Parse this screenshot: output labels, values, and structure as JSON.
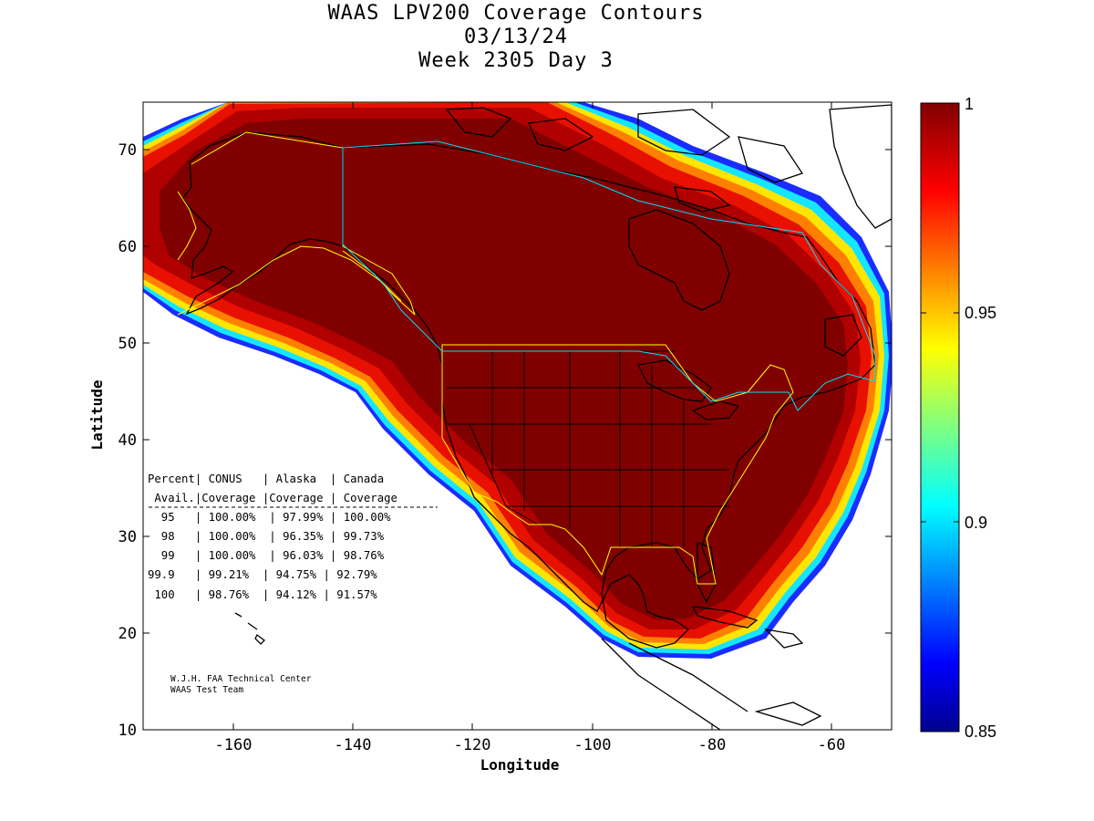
{
  "title": {
    "line1": "WAAS LPV200 Coverage Contours",
    "line2": "03/13/24",
    "line3": "Week 2305 Day 3"
  },
  "axes": {
    "xlabel": "Longitude",
    "ylabel": "Latitude",
    "xlim": [
      -175,
      -50
    ],
    "ylim": [
      10,
      75
    ],
    "xticks": [
      -160,
      -140,
      -120,
      -100,
      -80,
      -60
    ],
    "yticks": [
      10,
      20,
      30,
      40,
      50,
      60,
      70
    ]
  },
  "colorbar": {
    "range": [
      0.85,
      1
    ],
    "tick_values": [
      1,
      0.95,
      0.9,
      0.85
    ],
    "tick_labels": [
      "1",
      "0.95",
      "0.9",
      "0.85"
    ],
    "colormap": "jet"
  },
  "coverage_table": {
    "header1": "Percent| CONUS   | Alaska  | Canada",
    "header2": " Avail.|Coverage |Coverage | Coverage",
    "rows": [
      "  95   | 100.00%  | 97.99% | 100.00%",
      "  98   | 100.00%  | 96.35% | 99.73%",
      "  99   | 100.00%  | 96.03% | 98.76%",
      "99.9   | 99.21%  | 94.75% | 92.79%",
      " 100   | 98.76%  | 94.12% | 91.57%"
    ]
  },
  "credits": {
    "line1": "W.J.H. FAA Technical Center",
    "line2": "WAAS Test Team"
  },
  "colors": {
    "full_coverage": "#800000",
    "border_yellow": "#ffff00",
    "border_cyan": "#00e0ff",
    "coastline": "#000000"
  }
}
